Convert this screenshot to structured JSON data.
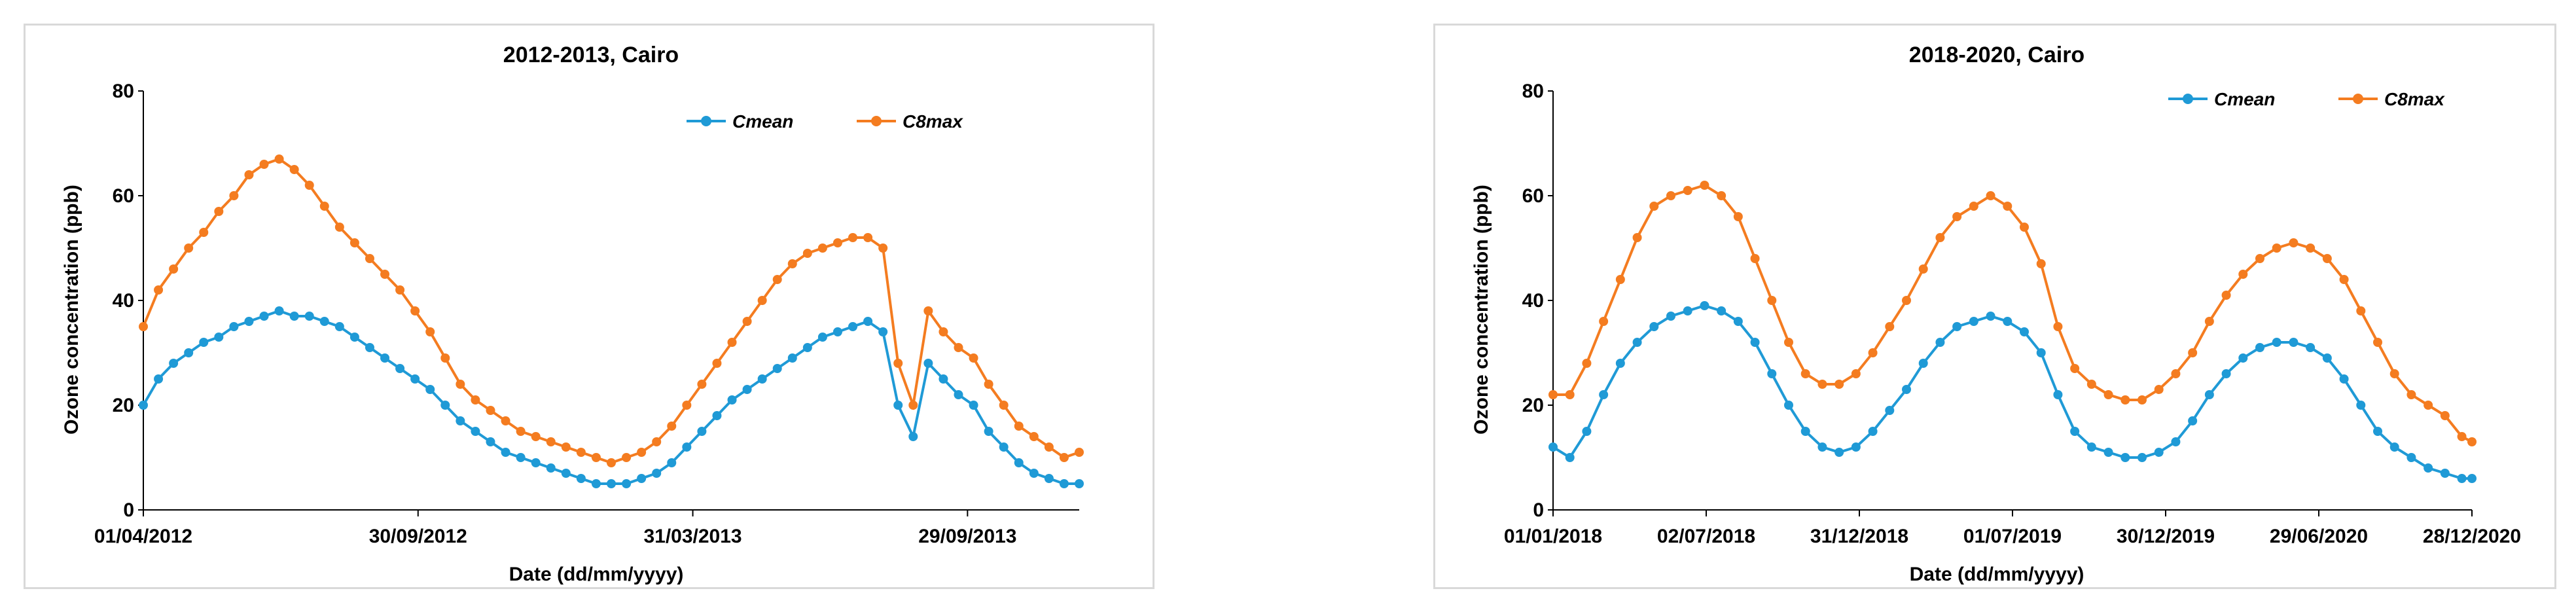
{
  "colors": {
    "cmean": "#1f9ad6",
    "c8max": "#f47c20",
    "axis": "#000000"
  },
  "chart_data": [
    {
      "type": "line",
      "title": "2012-2013, Cairo",
      "xlabel": "Date (dd/mm/yyyy)",
      "ylabel": "Ozone concentration (ppb)",
      "ylim": [
        0,
        80
      ],
      "yticks": [
        0,
        20,
        40,
        60,
        80
      ],
      "xticks": [
        "01/04/2012",
        "30/09/2012",
        "31/03/2013",
        "29/09/2013"
      ],
      "xrange_days": [
        0,
        620
      ],
      "xtick_days": [
        0,
        182,
        364,
        546
      ],
      "legend": "top-right",
      "series": [
        {
          "name": "Cmean",
          "x_days": [
            0,
            10,
            20,
            30,
            40,
            50,
            60,
            70,
            80,
            90,
            100,
            110,
            120,
            130,
            140,
            150,
            160,
            170,
            180,
            190,
            200,
            210,
            220,
            230,
            240,
            250,
            260,
            270,
            280,
            290,
            300,
            310,
            320,
            330,
            340,
            350,
            360,
            370,
            380,
            390,
            400,
            410,
            420,
            430,
            440,
            450,
            460,
            470,
            480,
            490,
            500,
            510,
            520,
            530,
            540,
            550,
            560,
            570,
            580,
            590,
            600,
            610,
            620
          ],
          "values": [
            20,
            25,
            28,
            30,
            32,
            33,
            35,
            36,
            37,
            38,
            37,
            37,
            36,
            35,
            33,
            31,
            29,
            27,
            25,
            23,
            20,
            17,
            15,
            13,
            11,
            10,
            9,
            8,
            7,
            6,
            5,
            5,
            5,
            6,
            7,
            9,
            12,
            15,
            18,
            21,
            23,
            25,
            27,
            29,
            31,
            33,
            34,
            35,
            36,
            34,
            20,
            14,
            28,
            25,
            22,
            20,
            15,
            12,
            9,
            7,
            6,
            5,
            5
          ]
        },
        {
          "name": "C8max",
          "x_days": [
            0,
            10,
            20,
            30,
            40,
            50,
            60,
            70,
            80,
            90,
            100,
            110,
            120,
            130,
            140,
            150,
            160,
            170,
            180,
            190,
            200,
            210,
            220,
            230,
            240,
            250,
            260,
            270,
            280,
            290,
            300,
            310,
            320,
            330,
            340,
            350,
            360,
            370,
            380,
            390,
            400,
            410,
            420,
            430,
            440,
            450,
            460,
            470,
            480,
            490,
            500,
            510,
            520,
            530,
            540,
            550,
            560,
            570,
            580,
            590,
            600,
            610,
            620
          ],
          "values": [
            35,
            42,
            46,
            50,
            53,
            57,
            60,
            64,
            66,
            67,
            65,
            62,
            58,
            54,
            51,
            48,
            45,
            42,
            38,
            34,
            29,
            24,
            21,
            19,
            17,
            15,
            14,
            13,
            12,
            11,
            10,
            9,
            10,
            11,
            13,
            16,
            20,
            24,
            28,
            32,
            36,
            40,
            44,
            47,
            49,
            50,
            51,
            52,
            52,
            50,
            28,
            20,
            38,
            34,
            31,
            29,
            24,
            20,
            16,
            14,
            12,
            10,
            11
          ]
        }
      ]
    },
    {
      "type": "line",
      "title": "2018-2020, Cairo",
      "xlabel": "Date (dd/mm/yyyy)",
      "ylabel": "Ozone concentration (ppb)",
      "ylim": [
        0,
        80
      ],
      "yticks": [
        0,
        20,
        40,
        60,
        80
      ],
      "xticks": [
        "01/01/2018",
        "02/07/2018",
        "31/12/2018",
        "01/07/2019",
        "30/12/2019",
        "29/06/2020",
        "28/12/2020"
      ],
      "xrange_days": [
        0,
        1092
      ],
      "xtick_days": [
        0,
        182,
        364,
        546,
        728,
        910,
        1092
      ],
      "legend": "top-right",
      "series": [
        {
          "name": "Cmean",
          "x_days": [
            0,
            20,
            40,
            60,
            80,
            100,
            120,
            140,
            160,
            180,
            200,
            220,
            240,
            260,
            280,
            300,
            320,
            340,
            360,
            380,
            400,
            420,
            440,
            460,
            480,
            500,
            520,
            540,
            560,
            580,
            600,
            620,
            640,
            660,
            680,
            700,
            720,
            740,
            760,
            780,
            800,
            820,
            840,
            860,
            880,
            900,
            920,
            940,
            960,
            980,
            1000,
            1020,
            1040,
            1060,
            1080,
            1092
          ],
          "values": [
            12,
            10,
            15,
            22,
            28,
            32,
            35,
            37,
            38,
            39,
            38,
            36,
            32,
            26,
            20,
            15,
            12,
            11,
            12,
            15,
            19,
            23,
            28,
            32,
            35,
            36,
            37,
            36,
            34,
            30,
            22,
            15,
            12,
            11,
            10,
            10,
            11,
            13,
            17,
            22,
            26,
            29,
            31,
            32,
            32,
            31,
            29,
            25,
            20,
            15,
            12,
            10,
            8,
            7,
            6,
            6
          ]
        },
        {
          "name": "C8max",
          "x_days": [
            0,
            20,
            40,
            60,
            80,
            100,
            120,
            140,
            160,
            180,
            200,
            220,
            240,
            260,
            280,
            300,
            320,
            340,
            360,
            380,
            400,
            420,
            440,
            460,
            480,
            500,
            520,
            540,
            560,
            580,
            600,
            620,
            640,
            660,
            680,
            700,
            720,
            740,
            760,
            780,
            800,
            820,
            840,
            860,
            880,
            900,
            920,
            940,
            960,
            980,
            1000,
            1020,
            1040,
            1060,
            1080,
            1092
          ],
          "values": [
            22,
            22,
            28,
            36,
            44,
            52,
            58,
            60,
            61,
            62,
            60,
            56,
            48,
            40,
            32,
            26,
            24,
            24,
            26,
            30,
            35,
            40,
            46,
            52,
            56,
            58,
            60,
            58,
            54,
            47,
            35,
            27,
            24,
            22,
            21,
            21,
            23,
            26,
            30,
            36,
            41,
            45,
            48,
            50,
            51,
            50,
            48,
            44,
            38,
            32,
            26,
            22,
            20,
            18,
            14,
            13
          ]
        }
      ]
    }
  ]
}
